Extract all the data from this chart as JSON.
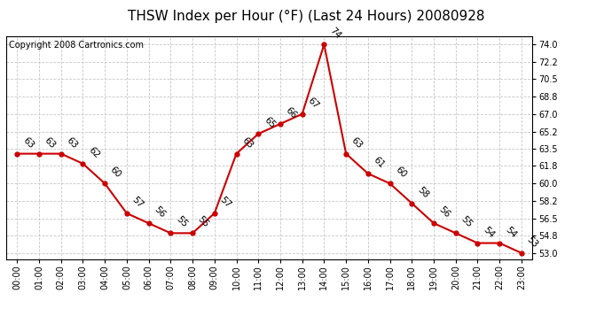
{
  "title": "THSW Index per Hour (°F) (Last 24 Hours) 20080928",
  "copyright": "Copyright 2008 Cartronics.com",
  "hours": [
    0,
    1,
    2,
    3,
    4,
    5,
    6,
    7,
    8,
    9,
    10,
    11,
    12,
    13,
    14,
    15,
    16,
    17,
    18,
    19,
    20,
    21,
    22,
    23
  ],
  "values": [
    63,
    63,
    63,
    62,
    60,
    57,
    56,
    55,
    55,
    57,
    63,
    65,
    66,
    67,
    74,
    63,
    61,
    60,
    58,
    56,
    55,
    54,
    54,
    53
  ],
  "x_labels": [
    "00:00",
    "01:00",
    "02:00",
    "03:00",
    "04:00",
    "05:00",
    "06:00",
    "07:00",
    "08:00",
    "09:00",
    "10:00",
    "11:00",
    "12:00",
    "13:00",
    "14:00",
    "15:00",
    "16:00",
    "17:00",
    "18:00",
    "19:00",
    "20:00",
    "21:00",
    "22:00",
    "23:00"
  ],
  "y_ticks": [
    53.0,
    54.8,
    56.5,
    58.2,
    60.0,
    61.8,
    63.5,
    65.2,
    67.0,
    68.8,
    70.5,
    72.2,
    74.0
  ],
  "ylim": [
    52.4,
    74.8
  ],
  "line_color": "#cc0000",
  "marker_color": "#cc0000",
  "bg_color": "#ffffff",
  "grid_color": "#c8c8c8",
  "title_fontsize": 11,
  "label_fontsize": 7,
  "annotation_fontsize": 7.5,
  "annotation_rotation": 315,
  "copyright_fontsize": 7
}
